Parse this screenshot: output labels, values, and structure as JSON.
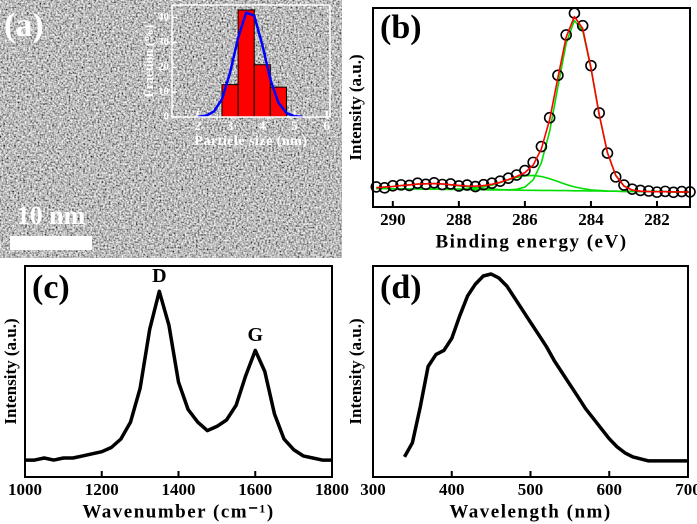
{
  "chart_data": [
    {
      "type": "histogram",
      "panel_label": "(a)",
      "scale_bar_label": "10 nm",
      "xlabel": "Particle size (nm)",
      "ylabel": "Fraction (%)",
      "bins": [
        2.75,
        3.25,
        3.75,
        4.25,
        4.75
      ],
      "values": [
        13,
        43,
        21,
        12
      ],
      "color": "#ff0000",
      "fit": {
        "color": "#0000ff",
        "x": [
          2,
          2.25,
          2.5,
          2.75,
          3,
          3.25,
          3.5,
          3.75,
          4,
          4.25,
          4.5,
          4.75,
          5,
          5.25
        ],
        "values": [
          0.1,
          0.5,
          2.2,
          7.2,
          17.7,
          31.8,
          42,
          40.7,
          29,
          15.2,
          5.8,
          1.6,
          0.3,
          0.1
        ]
      },
      "xlim": [
        1.2,
        6.1
      ],
      "ylim": [
        0,
        45
      ],
      "xticks": [
        2,
        3,
        4,
        5,
        6
      ],
      "yticks": [
        0,
        10,
        20,
        30,
        40
      ]
    },
    {
      "type": "line",
      "panel_label": "(b)",
      "xlabel": "Binding energy (eV)",
      "ylabel": "Intensity (a.u.)",
      "x": [
        290.5,
        290.25,
        290,
        289.75,
        289.5,
        289.25,
        289,
        288.75,
        288.5,
        288.25,
        288,
        287.75,
        287.5,
        287.25,
        287,
        286.75,
        286.5,
        286.25,
        286,
        285.75,
        285.5,
        285.25,
        285,
        284.75,
        284.5,
        284.25,
        284,
        283.75,
        283.5,
        283.25,
        283,
        282.75,
        282.5,
        282.25,
        282,
        281.75,
        281.5,
        281.25,
        281
      ],
      "series": [
        {
          "style": "line",
          "color": "#00dd00",
          "values": [
            4.9,
            4.9,
            4.8,
            4.8,
            4.7,
            4.7,
            4.6,
            4.6,
            4.5,
            4.5,
            4.4,
            4.4,
            4.3,
            4.3,
            4.2,
            4.2,
            4.2,
            4.5,
            5.7,
            9.6,
            18.8,
            35.8,
            59.6,
            83.1,
            95.3,
            89.8,
            69.5,
            44.5,
            24.2,
            12.0,
            6.3,
            4.1,
            3.5,
            3.3,
            3.2,
            3.2,
            3.1,
            3.1,
            3.0
          ]
        },
        {
          "style": "line",
          "color": "#00dd00",
          "values": [
            4.9,
            4.9,
            4.8,
            4.8,
            4.7,
            4.7,
            4.6,
            4.6,
            4.5,
            4.5,
            4.6,
            4.8,
            5.1,
            5.8,
            6.8,
            8.1,
            9.6,
            10.9,
            11.8,
            12.0,
            11.4,
            10.2,
            8.7,
            7.1,
            5.8,
            4.9,
            4.2,
            3.9,
            3.6,
            3.5,
            3.4,
            3.4,
            3.3,
            3.3,
            3.2,
            3.2,
            3.1,
            3.1,
            3.0
          ]
        },
        {
          "style": "line",
          "color": "#00dd00",
          "values": [
            5.4,
            5.7,
            6.0,
            6.5,
            6.9,
            7.3,
            7.5,
            7.6,
            7.3,
            6.9,
            6.4,
            5.9,
            5.4,
            4.9,
            4.6,
            4.4,
            4.2,
            4.1,
            4.0,
            4.0,
            3.9,
            3.9,
            3.8,
            3.8,
            3.7,
            3.7,
            3.6,
            3.6,
            3.5,
            3.5,
            3.4,
            3.4,
            3.3,
            3.3,
            3.2,
            3.2,
            3.1,
            3.1,
            3.0
          ]
        },
        {
          "style": "circles",
          "color": "#000000",
          "values": [
            5.8,
            5.3,
            6.4,
            6.9,
            6.6,
            7.8,
            7.2,
            8.0,
            7.1,
            7.4,
            6.3,
            6.8,
            6.0,
            7.0,
            7.8,
            8.9,
            10.5,
            12.2,
            14.6,
            19.0,
            27.5,
            43.0,
            65.8,
            87.5,
            99.2,
            92.5,
            71.0,
            45.6,
            24.0,
            11.2,
            6.8,
            4.6,
            3.9,
            3.6,
            3.0,
            3.4,
            2.9,
            3.3,
            3.1
          ]
        },
        {
          "style": "line",
          "color": "#ff0000",
          "values": [
            5.4,
            5.7,
            6.0,
            6.5,
            6.9,
            7.3,
            7.5,
            7.6,
            7.4,
            7.0,
            6.6,
            6.3,
            6.2,
            6.5,
            7.2,
            8.3,
            9.8,
            11.4,
            13.5,
            17.6,
            26.3,
            42.1,
            64.5,
            86.4,
            97.4,
            91.0,
            70.1,
            44.8,
            24.3,
            12.0,
            6.3,
            4.1,
            3.5,
            3.3,
            3.2,
            3.2,
            3.1,
            3.1,
            3.0
          ]
        }
      ],
      "xlim": [
        290.6,
        281
      ],
      "ylim": [
        -5,
        102
      ],
      "xticks": [
        290,
        288,
        286,
        284,
        282
      ]
    },
    {
      "type": "line",
      "panel_label": "(c)",
      "xlabel": "Wavenumber (cm⁻¹)",
      "ylabel": "Intensity (a.u.)",
      "x": [
        1000,
        1025,
        1050,
        1075,
        1100,
        1125,
        1150,
        1175,
        1200,
        1225,
        1250,
        1275,
        1300,
        1325,
        1350,
        1375,
        1400,
        1425,
        1450,
        1475,
        1500,
        1525,
        1550,
        1575,
        1600,
        1625,
        1650,
        1675,
        1700,
        1725,
        1750,
        1775,
        1800
      ],
      "series": [
        {
          "style": "line",
          "color": "#000000",
          "values": [
            8,
            8,
            9,
            8,
            9,
            9,
            10,
            11,
            12,
            14,
            18,
            26,
            42,
            70,
            88,
            72,
            45,
            32,
            26,
            22,
            24,
            27,
            34,
            48,
            60,
            50,
            30,
            18,
            13,
            10,
            9,
            8,
            8
          ]
        }
      ],
      "annotations": [
        {
          "text": "D",
          "x": 1350
        },
        {
          "text": "G",
          "x": 1600
        }
      ],
      "xlim": [
        1000,
        1800
      ],
      "ylim": [
        0,
        100
      ],
      "xticks": [
        1000,
        1200,
        1400,
        1600,
        1800
      ]
    },
    {
      "type": "line",
      "panel_label": "(d)",
      "xlabel": "Wavelength (nm)",
      "ylabel": "Intensity (a.u.)",
      "x": [
        340,
        350,
        360,
        370,
        380,
        390,
        400,
        410,
        420,
        430,
        440,
        450,
        460,
        470,
        480,
        490,
        500,
        510,
        520,
        530,
        540,
        550,
        560,
        570,
        580,
        590,
        600,
        610,
        620,
        630,
        640,
        650,
        660,
        670,
        680,
        690,
        700
      ],
      "series": [
        {
          "style": "line",
          "color": "#000000",
          "values": [
            5,
            12,
            30,
            50,
            56,
            58,
            64,
            75,
            85,
            91,
            95,
            96,
            94,
            90,
            84,
            78,
            72,
            66,
            60,
            53,
            47,
            41,
            35,
            29,
            24,
            19,
            14,
            10,
            7,
            5,
            4,
            3,
            3,
            3,
            3,
            3,
            3
          ]
        }
      ],
      "xlim": [
        300,
        700
      ],
      "ylim": [
        -5,
        100
      ],
      "xticks": [
        300,
        400,
        500,
        600,
        700
      ]
    }
  ]
}
